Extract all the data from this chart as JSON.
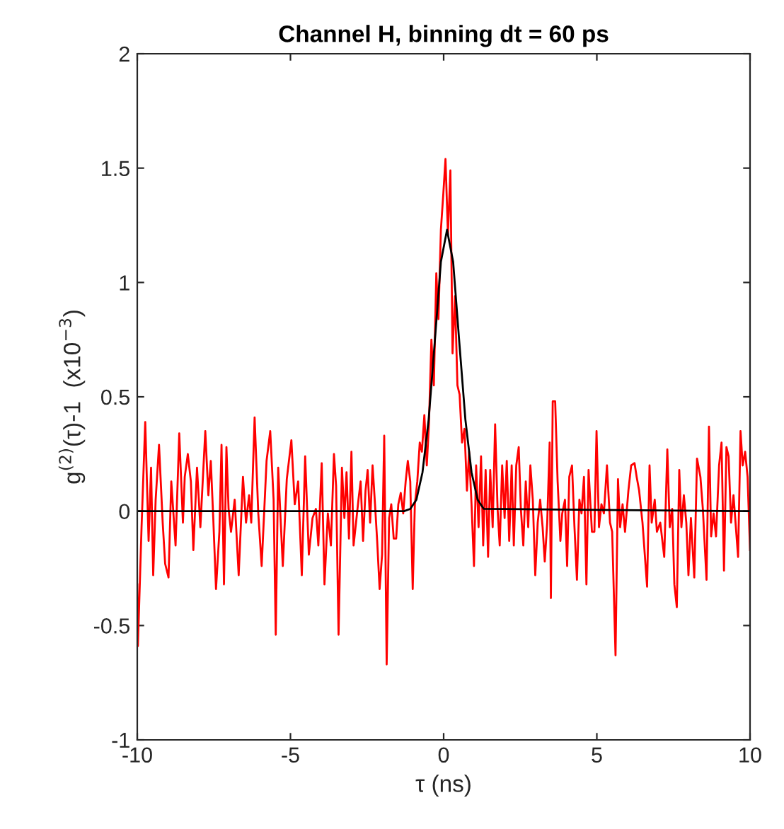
{
  "chart_data": {
    "type": "line",
    "title": "Channel H, binning dt = 60 ps",
    "xlabel": "τ (ns)",
    "ylabel": "g$^{(2)}$(τ)-1  (x10$^{−3}$)",
    "xlim": [
      -10,
      10
    ],
    "ylim": [
      -1,
      2
    ],
    "xticks": [
      -10,
      -5,
      0,
      5,
      10
    ],
    "yticks": [
      -1,
      -0.5,
      0,
      0.5,
      1,
      1.5,
      2
    ],
    "grid": false,
    "marker": "none",
    "line_style": "solid",
    "series": [
      {
        "color": "#ff0000",
        "x": [
          -10.0,
          -9.98,
          -9.86,
          -9.74,
          -9.63,
          -9.55,
          -9.48,
          -9.4,
          -9.29,
          -9.17,
          -9.09,
          -8.98,
          -8.89,
          -8.75,
          -8.63,
          -8.51,
          -8.45,
          -8.35,
          -8.25,
          -8.17,
          -8.05,
          -7.94,
          -7.78,
          -7.68,
          -7.6,
          -7.52,
          -7.43,
          -7.32,
          -7.25,
          -7.17,
          -7.09,
          -7.02,
          -6.94,
          -6.82,
          -6.69,
          -6.55,
          -6.45,
          -6.35,
          -6.28,
          -6.17,
          -6.05,
          -5.94,
          -5.78,
          -5.66,
          -5.55,
          -5.48,
          -5.4,
          -5.25,
          -5.12,
          -4.97,
          -4.86,
          -4.75,
          -4.63,
          -4.52,
          -4.4,
          -4.28,
          -4.17,
          -4.09,
          -3.98,
          -3.89,
          -3.78,
          -3.68,
          -3.58,
          -3.51,
          -3.43,
          -3.32,
          -3.24,
          -3.17,
          -3.09,
          -3.01,
          -2.94,
          -2.86,
          -2.78,
          -2.71,
          -2.63,
          -2.55,
          -2.48,
          -2.4,
          -2.32,
          -2.24,
          -2.17,
          -2.09,
          -2.01,
          -1.94,
          -1.86,
          -1.78,
          -1.71,
          -1.63,
          -1.55,
          -1.48,
          -1.4,
          -1.32,
          -1.24,
          -1.17,
          -1.09,
          -1.01,
          -0.94,
          -0.86,
          -0.78,
          -0.71,
          -0.63,
          -0.55,
          -0.48,
          -0.4,
          -0.32,
          -0.24,
          -0.17,
          -0.09,
          -0.01,
          0.06,
          0.14,
          0.22,
          0.29,
          0.37,
          0.45,
          0.52,
          0.6,
          0.68,
          0.76,
          0.83,
          0.91,
          0.99,
          1.06,
          1.14,
          1.22,
          1.29,
          1.37,
          1.45,
          1.52,
          1.6,
          1.68,
          1.76,
          1.83,
          1.91,
          1.99,
          2.06,
          2.14,
          2.22,
          2.29,
          2.37,
          2.45,
          2.52,
          2.6,
          2.68,
          2.76,
          2.83,
          2.91,
          2.99,
          3.07,
          3.15,
          3.23,
          3.3,
          3.38,
          3.46,
          3.5,
          3.56,
          3.64,
          3.72,
          3.81,
          3.87,
          3.96,
          4.03,
          4.1,
          4.19,
          4.27,
          4.35,
          4.43,
          4.5,
          4.58,
          4.66,
          4.73,
          4.84,
          4.92,
          4.99,
          5.07,
          5.15,
          5.23,
          5.33,
          5.43,
          5.5,
          5.61,
          5.69,
          5.76,
          5.84,
          5.92,
          6.03,
          6.12,
          6.23,
          6.3,
          6.38,
          6.49,
          6.64,
          6.72,
          6.79,
          6.89,
          6.96,
          7.07,
          7.2,
          7.3,
          7.38,
          7.46,
          7.53,
          7.61,
          7.69,
          7.76,
          7.84,
          7.92,
          7.99,
          8.07,
          8.18,
          8.27,
          8.38,
          8.46,
          8.58,
          8.66,
          8.73,
          8.81,
          8.89,
          8.99,
          9.07,
          9.15,
          9.23,
          9.3,
          9.38,
          9.46,
          9.61,
          9.69,
          9.76,
          9.84,
          9.92,
          10.0
        ],
        "values": [
          -0.32,
          -0.59,
          -0.07,
          0.39,
          -0.13,
          0.19,
          -0.28,
          0.05,
          0.29,
          -0.05,
          -0.23,
          -0.29,
          0.13,
          -0.15,
          0.34,
          -0.05,
          0.15,
          0.25,
          0.13,
          -0.17,
          0.19,
          -0.07,
          0.35,
          0.07,
          0.22,
          -0.03,
          -0.34,
          -0.09,
          0.29,
          -0.32,
          0.28,
          0.01,
          -0.09,
          0.05,
          -0.28,
          0.15,
          -0.05,
          0.07,
          -0.05,
          0.41,
          -0.01,
          -0.24,
          0.22,
          0.35,
          0.05,
          -0.54,
          0.19,
          -0.24,
          0.14,
          0.31,
          0.03,
          0.13,
          -0.28,
          0.24,
          -0.19,
          -0.03,
          0.01,
          -0.15,
          0.21,
          -0.32,
          -0.01,
          -0.15,
          0.25,
          0.11,
          -0.54,
          0.19,
          -0.03,
          0.17,
          -0.12,
          0.26,
          -0.15,
          -0.05,
          0.05,
          0.13,
          -0.13,
          0.09,
          0.18,
          -0.05,
          0.2,
          0.03,
          -0.13,
          -0.34,
          -0.19,
          0.33,
          -0.67,
          -0.03,
          0.03,
          -0.12,
          -0.12,
          0.03,
          0.08,
          -0.01,
          0.13,
          0.22,
          0.13,
          -0.34,
          0.03,
          0.13,
          0.3,
          0.26,
          0.42,
          0.2,
          0.38,
          0.75,
          0.55,
          1.04,
          0.84,
          1.23,
          1.39,
          1.54,
          1.21,
          1.49,
          0.69,
          0.94,
          0.55,
          0.51,
          0.3,
          0.36,
          0.09,
          0.26,
          0.03,
          -0.24,
          0.2,
          -0.07,
          0.24,
          -0.15,
          0.18,
          -0.2,
          0.18,
          -0.07,
          0.38,
          0.01,
          -0.15,
          0.2,
          -0.03,
          0.22,
          -0.13,
          0.2,
          -0.15,
          0.2,
          0.28,
          0.01,
          -0.15,
          0.13,
          -0.07,
          0.2,
          0.05,
          -0.28,
          -0.05,
          0.05,
          -0.07,
          -0.22,
          -0.05,
          0.3,
          -0.38,
          0.48,
          0.48,
          0.13,
          -0.13,
          -0.01,
          0.05,
          -0.24,
          0.15,
          0.2,
          -0.07,
          -0.3,
          0.05,
          -0.01,
          0.15,
          -0.32,
          0.18,
          -0.09,
          -0.09,
          0.35,
          -0.07,
          0.03,
          -0.01,
          0.2,
          -0.05,
          -0.09,
          -0.63,
          0.14,
          -0.07,
          0.03,
          -0.09,
          0.09,
          0.2,
          0.21,
          0.15,
          0.09,
          -0.05,
          -0.33,
          0.2,
          -0.05,
          0.05,
          -0.09,
          -0.05,
          -0.2,
          0.27,
          -0.07,
          0.01,
          -0.32,
          -0.42,
          0.18,
          -0.07,
          0.07,
          -0.05,
          -0.28,
          -0.03,
          -0.29,
          0.23,
          0.15,
          0.01,
          -0.3,
          0.37,
          -0.11,
          -0.01,
          -0.11,
          0.2,
          0.3,
          -0.26,
          0.28,
          0.24,
          -0.05,
          0.07,
          -0.2,
          0.35,
          0.2,
          0.26,
          0.15,
          -0.17
        ]
      },
      {
        "color": "#000000",
        "x": [
          -10,
          -1.29,
          -1.09,
          -0.89,
          -0.69,
          -0.49,
          -0.29,
          -0.09,
          0.11,
          0.31,
          0.51,
          0.71,
          0.91,
          1.11,
          1.31,
          10
        ],
        "values": [
          0,
          0,
          0.01,
          0.05,
          0.17,
          0.4,
          0.74,
          1.09,
          1.23,
          1.09,
          0.74,
          0.4,
          0.17,
          0.05,
          0.01,
          0
        ]
      }
    ]
  }
}
